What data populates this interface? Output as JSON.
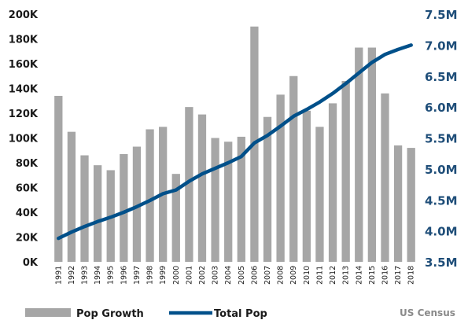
{
  "chart_data": {
    "type": "bar",
    "categories": [
      "1991",
      "1992",
      "1993",
      "1994",
      "1995",
      "1996",
      "1997",
      "1998",
      "1999",
      "2000",
      "2001",
      "2002",
      "2003",
      "2004",
      "2005",
      "2006",
      "2007",
      "2008",
      "2009",
      "2010",
      "2011",
      "2012",
      "2013",
      "2014",
      "2015",
      "2016",
      "2017",
      "2018"
    ],
    "series": [
      {
        "name": "Pop Growth",
        "type": "bar",
        "axis": "left",
        "color": "#a6a6a6",
        "values": [
          134000,
          105000,
          86000,
          78000,
          74000,
          87000,
          93000,
          107000,
          109000,
          71000,
          125000,
          119000,
          100000,
          97000,
          101000,
          190000,
          117000,
          135000,
          150000,
          122000,
          109000,
          128000,
          146000,
          173000,
          173000,
          136000,
          94000,
          92000
        ]
      },
      {
        "name": "Total Pop",
        "type": "line",
        "axis": "right",
        "color": "#00508a",
        "values": [
          3.88,
          3.98,
          4.07,
          4.15,
          4.22,
          4.3,
          4.39,
          4.49,
          4.6,
          4.66,
          4.8,
          4.92,
          5.01,
          5.1,
          5.2,
          5.42,
          5.54,
          5.69,
          5.85,
          5.96,
          6.08,
          6.22,
          6.38,
          6.55,
          6.72,
          6.85,
          6.93,
          7.0
        ]
      }
    ],
    "y_left": {
      "min": 0,
      "max": 200000,
      "ticks": [
        "0K",
        "20K",
        "40K",
        "60K",
        "80K",
        "100K",
        "120K",
        "140K",
        "160K",
        "180K",
        "200K"
      ]
    },
    "y_right": {
      "min": 3.5,
      "max": 7.5,
      "ticks": [
        "3.5M",
        "4.0M",
        "4.5M",
        "5.0M",
        "5.5M",
        "6.0M",
        "6.5M",
        "7.0M",
        "7.5M"
      ],
      "color": "#1f4e79"
    },
    "grid": false,
    "legend_position": "bottom-left"
  },
  "source": "US Census"
}
